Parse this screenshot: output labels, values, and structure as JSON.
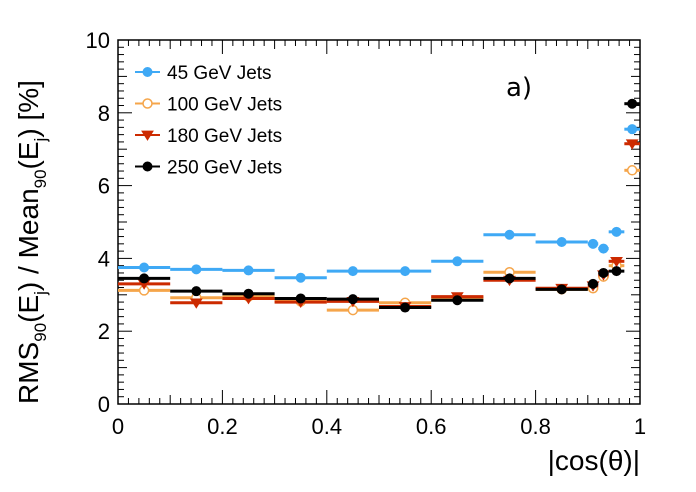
{
  "chart_data": {
    "type": "scatter",
    "xlabel": "|cos(θ)|",
    "ylabel": {
      "t1": "RMS",
      "s1": "90",
      "t2": "(E",
      "s2": "j",
      "t3": ") / Mean",
      "s3": "90",
      "t4": "(E",
      "s4": "j",
      "t5": ") [%]"
    },
    "annotation": "a)",
    "xlim": [
      0,
      1
    ],
    "ylim": [
      0,
      10
    ],
    "x_ticks": [
      0,
      0.2,
      0.4,
      0.6,
      0.8,
      1
    ],
    "x_tick_labels": [
      "0",
      "0.2",
      "0.4",
      "0.6",
      "0.8",
      "1"
    ],
    "y_ticks": [
      0,
      2,
      4,
      6,
      8,
      10
    ],
    "y_tick_labels": [
      "0",
      "2",
      "4",
      "6",
      "8",
      "10"
    ],
    "legend_position": "top-left",
    "series": [
      {
        "name": "45 GeV Jets",
        "color": "#3fa9f5",
        "marker": "circle-filled",
        "points": [
          {
            "x": 0.05,
            "xw": 0.05,
            "y": 3.75
          },
          {
            "x": 0.15,
            "xw": 0.05,
            "y": 3.7
          },
          {
            "x": 0.25,
            "xw": 0.05,
            "y": 3.67
          },
          {
            "x": 0.35,
            "xw": 0.05,
            "y": 3.47
          },
          {
            "x": 0.45,
            "xw": 0.05,
            "y": 3.65
          },
          {
            "x": 0.55,
            "xw": 0.05,
            "y": 3.65
          },
          {
            "x": 0.65,
            "xw": 0.05,
            "y": 3.92
          },
          {
            "x": 0.75,
            "xw": 0.05,
            "y": 4.65
          },
          {
            "x": 0.85,
            "xw": 0.05,
            "y": 4.45
          },
          {
            "x": 0.91,
            "xw": 0.01,
            "y": 4.4
          },
          {
            "x": 0.93,
            "xw": 0.01,
            "y": 4.27
          },
          {
            "x": 0.955,
            "xw": 0.015,
            "y": 4.73
          },
          {
            "x": 0.985,
            "xw": 0.015,
            "y": 7.55
          }
        ]
      },
      {
        "name": "100 GeV Jets",
        "color": "#f5a54a",
        "marker": "circle-open",
        "points": [
          {
            "x": 0.05,
            "xw": 0.05,
            "y": 3.12
          },
          {
            "x": 0.15,
            "xw": 0.05,
            "y": 2.92
          },
          {
            "x": 0.25,
            "xw": 0.05,
            "y": 2.95
          },
          {
            "x": 0.35,
            "xw": 0.05,
            "y": 2.82
          },
          {
            "x": 0.45,
            "xw": 0.05,
            "y": 2.58
          },
          {
            "x": 0.55,
            "xw": 0.05,
            "y": 2.78
          },
          {
            "x": 0.65,
            "xw": 0.05,
            "y": 2.92
          },
          {
            "x": 0.75,
            "xw": 0.05,
            "y": 3.62
          },
          {
            "x": 0.85,
            "xw": 0.05,
            "y": 3.15
          },
          {
            "x": 0.91,
            "xw": 0.01,
            "y": 3.18
          },
          {
            "x": 0.93,
            "xw": 0.01,
            "y": 3.5
          },
          {
            "x": 0.955,
            "xw": 0.015,
            "y": 3.8
          },
          {
            "x": 0.985,
            "xw": 0.015,
            "y": 6.42
          }
        ]
      },
      {
        "name": "180 GeV Jets",
        "color": "#cc2a00",
        "marker": "triangle-down",
        "points": [
          {
            "x": 0.05,
            "xw": 0.05,
            "y": 3.3
          },
          {
            "x": 0.15,
            "xw": 0.05,
            "y": 2.78
          },
          {
            "x": 0.25,
            "xw": 0.05,
            "y": 2.9
          },
          {
            "x": 0.35,
            "xw": 0.05,
            "y": 2.8
          },
          {
            "x": 0.45,
            "xw": 0.05,
            "y": 2.82
          },
          {
            "x": 0.55,
            "xw": 0.05,
            "y": 2.68
          },
          {
            "x": 0.65,
            "xw": 0.05,
            "y": 2.95
          },
          {
            "x": 0.75,
            "xw": 0.05,
            "y": 3.4
          },
          {
            "x": 0.85,
            "xw": 0.05,
            "y": 3.18
          },
          {
            "x": 0.91,
            "xw": 0.01,
            "y": 3.25
          },
          {
            "x": 0.93,
            "xw": 0.01,
            "y": 3.55
          },
          {
            "x": 0.955,
            "xw": 0.015,
            "y": 3.92
          },
          {
            "x": 0.985,
            "xw": 0.015,
            "y": 7.15
          }
        ]
      },
      {
        "name": "250 GeV Jets",
        "color": "#000000",
        "marker": "circle-filled",
        "points": [
          {
            "x": 0.05,
            "xw": 0.05,
            "y": 3.45
          },
          {
            "x": 0.15,
            "xw": 0.05,
            "y": 3.1
          },
          {
            "x": 0.25,
            "xw": 0.05,
            "y": 3.03
          },
          {
            "x": 0.35,
            "xw": 0.05,
            "y": 2.9
          },
          {
            "x": 0.45,
            "xw": 0.05,
            "y": 2.88
          },
          {
            "x": 0.55,
            "xw": 0.05,
            "y": 2.65
          },
          {
            "x": 0.65,
            "xw": 0.05,
            "y": 2.85
          },
          {
            "x": 0.75,
            "xw": 0.05,
            "y": 3.45
          },
          {
            "x": 0.85,
            "xw": 0.05,
            "y": 3.15
          },
          {
            "x": 0.91,
            "xw": 0.01,
            "y": 3.3
          },
          {
            "x": 0.93,
            "xw": 0.01,
            "y": 3.6
          },
          {
            "x": 0.955,
            "xw": 0.015,
            "y": 3.65
          },
          {
            "x": 0.985,
            "xw": 0.015,
            "y": 8.25
          }
        ]
      }
    ]
  }
}
